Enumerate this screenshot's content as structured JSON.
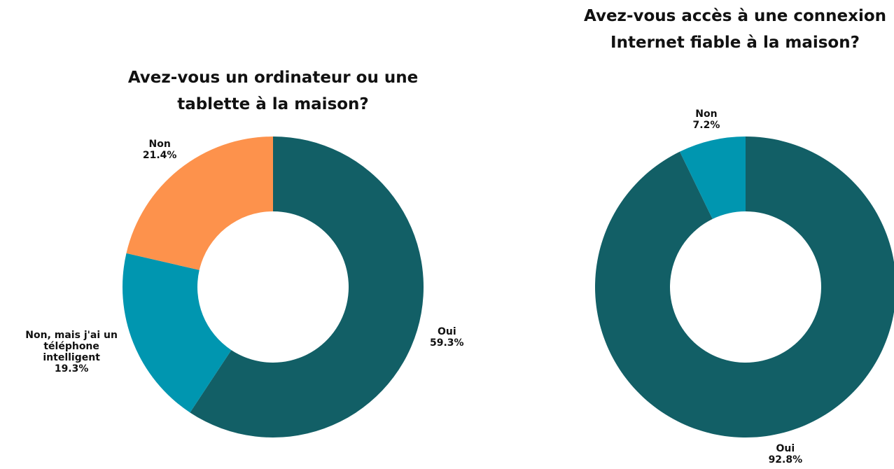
{
  "chart_data": [
    {
      "type": "pie",
      "title": "Avez-vous un ordinateur ou une tablette à la maison?",
      "categories": [
        "Oui",
        "Non, mais j'ai un téléphone intelligent",
        "Non"
      ],
      "values": [
        59.3,
        19.3,
        21.4
      ],
      "value_labels": [
        "59.3%",
        "19.3%",
        "21.4%"
      ],
      "colors": [
        "#125f66",
        "#0096b0",
        "#fd924c"
      ]
    },
    {
      "type": "pie",
      "title": "Avez-vous accès à une connexion Internet fiable à la maison?",
      "categories": [
        "Oui",
        "Non"
      ],
      "values": [
        92.8,
        7.2
      ],
      "value_labels": [
        "92.8%",
        "7.2%"
      ],
      "colors": [
        "#125f66",
        "#0096b0"
      ]
    }
  ]
}
